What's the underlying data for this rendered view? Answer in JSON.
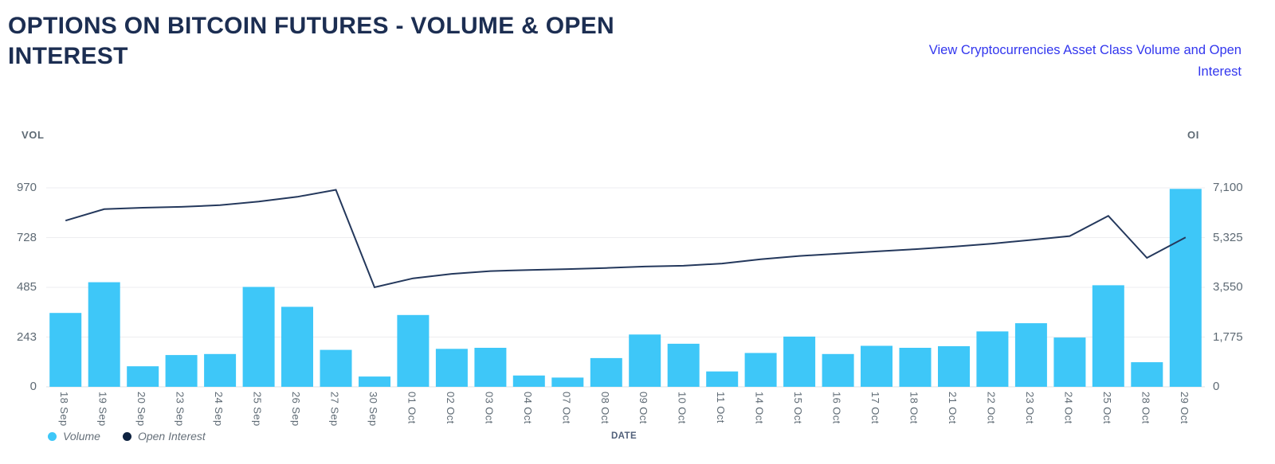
{
  "header": {
    "title": "OPTIONS ON BITCOIN FUTURES - VOLUME & OPEN INTEREST",
    "link_label": "View Cryptocurrencies Asset Class Volume and Open Interest",
    "link_color": "#3236ee",
    "title_color": "#1c2e52"
  },
  "chart_data": {
    "type": "bar+line",
    "title": "OPTIONS ON BITCOIN FUTURES - VOLUME & OPEN INTEREST",
    "xlabel": "DATE",
    "grid": true,
    "legend_position": "bottom-left",
    "categories": [
      "18 Sep",
      "19 Sep",
      "20 Sep",
      "23 Sep",
      "24 Sep",
      "25 Sep",
      "26 Sep",
      "27 Sep",
      "30 Sep",
      "01 Oct",
      "02 Oct",
      "03 Oct",
      "04 Oct",
      "07 Oct",
      "08 Oct",
      "09 Oct",
      "10 Oct",
      "11 Oct",
      "14 Oct",
      "15 Oct",
      "16 Oct",
      "17 Oct",
      "18 Oct",
      "21 Oct",
      "22 Oct",
      "23 Oct",
      "24 Oct",
      "25 Oct",
      "28 Oct",
      "29 Oct"
    ],
    "series": [
      {
        "name": "Volume",
        "type": "bar",
        "axis": "left",
        "color": "#3ec7f8",
        "values": [
          360,
          510,
          100,
          155,
          160,
          487,
          390,
          180,
          50,
          350,
          185,
          190,
          55,
          45,
          140,
          255,
          210,
          75,
          165,
          245,
          160,
          200,
          190,
          198,
          270,
          310,
          240,
          495,
          120,
          965
        ]
      },
      {
        "name": "Open Interest",
        "type": "line",
        "axis": "right",
        "color": "#24385c",
        "values": [
          5930,
          6340,
          6390,
          6420,
          6480,
          6610,
          6780,
          7030,
          3550,
          3870,
          4030,
          4130,
          4170,
          4200,
          4240,
          4290,
          4320,
          4400,
          4550,
          4670,
          4750,
          4830,
          4910,
          5000,
          5110,
          5240,
          5380,
          6100,
          4600,
          5330
        ]
      }
    ],
    "left_axis": {
      "label": "VOL",
      "max": 970,
      "min": 0,
      "tick_labels_top_down": [
        "970",
        "728",
        "485",
        "243",
        "0"
      ]
    },
    "right_axis": {
      "label": "OI",
      "max": 7100,
      "min": 0,
      "tick_labels_top_down": [
        "7,100",
        "5,325",
        "3,550",
        "1,775",
        "0"
      ]
    },
    "legend": [
      {
        "label": "Volume",
        "dot_color": "#3ec7f8"
      },
      {
        "label": "Open Interest",
        "dot_color": "#0e2240"
      }
    ]
  }
}
